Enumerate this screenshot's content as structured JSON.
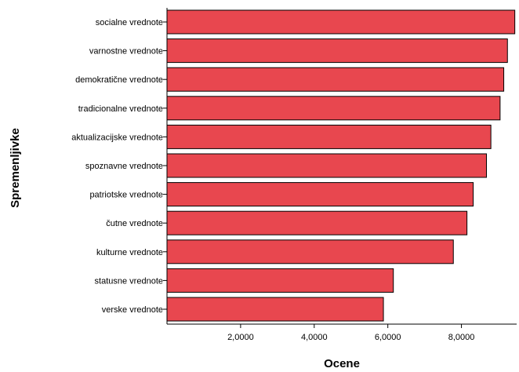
{
  "chart_data": {
    "type": "bar",
    "orientation": "horizontal",
    "categories": [
      "socialne vrednote",
      "varnostne vrednote",
      "demokratične vrednote",
      "tradicionalne vrednote",
      "aktualizacijske vrednote",
      "spoznavne vrednote",
      "patriotske vrednote",
      "čutne vrednote",
      "kulturne vrednote",
      "statusne vrednote",
      "verske vrednote"
    ],
    "values": [
      9.45,
      9.25,
      9.15,
      9.05,
      8.8,
      8.68,
      8.32,
      8.15,
      7.78,
      6.15,
      5.88
    ],
    "xlabel": "Ocene",
    "ylabel": "Spremenljivke",
    "xlim": [
      0,
      9.5
    ],
    "xticks": [
      2,
      4,
      6,
      8
    ],
    "xtick_labels": [
      "2,0000",
      "4,0000",
      "6,0000",
      "8,0000"
    ],
    "bar_color": "#e8474f",
    "grid": false,
    "legend": "none"
  }
}
